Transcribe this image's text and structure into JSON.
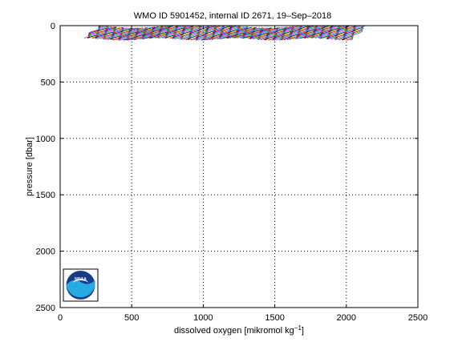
{
  "chart_data": {
    "type": "line",
    "title": "WMO ID 5901452, internal ID 2671, 19–Sep–2018",
    "xlabel": "dissolved oxygen [mikromol kg",
    "xlabel_sup": "−1",
    "xlabel_end": "]",
    "ylabel": "pressure [dbar]",
    "xlim": [
      0,
      2500
    ],
    "ylim": [
      2500,
      0
    ],
    "y_reversed": true,
    "xticks": [
      0,
      500,
      1000,
      1500,
      2000,
      2500
    ],
    "yticks": [
      0,
      500,
      1000,
      1500,
      2000,
      2500
    ],
    "grid": true,
    "profiles": {
      "count": 240,
      "first_x_start": 170,
      "last_x_start": 2020,
      "top_pressure": 0,
      "bottom_pressure": 120,
      "x_drift": 120
    },
    "colors": [
      "#ff0000",
      "#0000ff",
      "#00aa00",
      "#ff00ff",
      "#00cccc",
      "#000000",
      "#ffaa00",
      "#880088",
      "#999900",
      "#0077ff"
    ]
  },
  "logo": {
    "text": "NOAA",
    "colors": {
      "outer_ring": "#1a3a8c",
      "wave": "#27aae1",
      "bird": "#ffffff"
    }
  }
}
